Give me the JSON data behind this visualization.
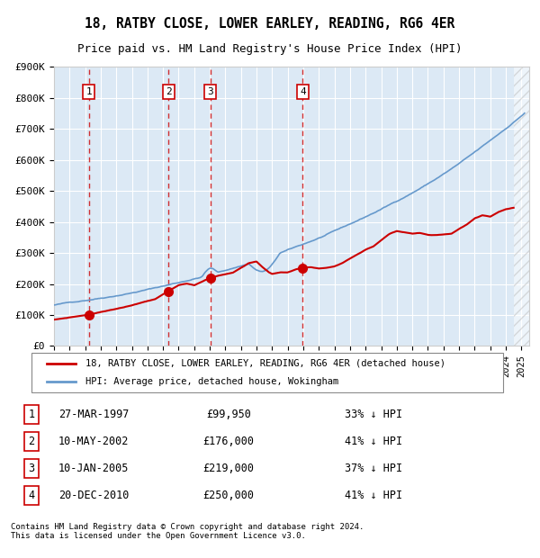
{
  "title": "18, RATBY CLOSE, LOWER EARLEY, READING, RG6 4ER",
  "subtitle": "Price paid vs. HM Land Registry's House Price Index (HPI)",
  "xlabel": "",
  "ylabel": "",
  "background_color": "#dce9f5",
  "plot_bg_color": "#dce9f5",
  "hpi_color": "#6699cc",
  "sale_color": "#cc0000",
  "sale_dot_color": "#cc0000",
  "vline_color": "#cc0000",
  "grid_color": "#ffffff",
  "ylim": [
    0,
    900000
  ],
  "yticks": [
    0,
    100000,
    200000,
    300000,
    400000,
    500000,
    600000,
    700000,
    800000,
    900000
  ],
  "ytick_labels": [
    "£0",
    "£100K",
    "£200K",
    "£300K",
    "£400K",
    "£500K",
    "£600K",
    "£700K",
    "£800K",
    "£900K"
  ],
  "xlim_start": 1995.0,
  "xlim_end": 2025.5,
  "sales": [
    {
      "num": 1,
      "date": "27-MAR-1997",
      "year": 1997.23,
      "price": 99950,
      "hpi_pct": "33% ↓ HPI"
    },
    {
      "num": 2,
      "date": "10-MAY-2002",
      "year": 2002.36,
      "price": 176000,
      "hpi_pct": "41% ↓ HPI"
    },
    {
      "num": 3,
      "date": "10-JAN-2005",
      "year": 2005.03,
      "price": 219000,
      "hpi_pct": "37% ↓ HPI"
    },
    {
      "num": 4,
      "date": "20-DEC-2010",
      "year": 2010.97,
      "price": 250000,
      "hpi_pct": "41% ↓ HPI"
    }
  ],
  "legend_sale_label": "18, RATBY CLOSE, LOWER EARLEY, READING, RG6 4ER (detached house)",
  "legend_hpi_label": "HPI: Average price, detached house, Wokingham",
  "footer": "Contains HM Land Registry data © Crown copyright and database right 2024.\nThis data is licensed under the Open Government Licence v3.0.",
  "hatch_color": "#aaaaaa"
}
